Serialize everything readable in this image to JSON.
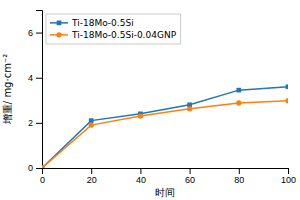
{
  "chart_data": {
    "type": "line",
    "xlabel": "时间",
    "ylabel": "增重/ mg·cm⁻²",
    "x": [
      0,
      20,
      40,
      60,
      80,
      100
    ],
    "series": [
      {
        "name": "Ti-18Mo-0.5Si",
        "values": [
          0,
          2.1,
          2.4,
          2.8,
          3.45,
          3.6
        ],
        "marker": "square"
      },
      {
        "name": "Ti-18Mo-0.5Si-0.04GNP",
        "values": [
          0,
          1.9,
          2.3,
          2.62,
          2.88,
          2.98
        ],
        "marker": "circle"
      }
    ],
    "xlim": [
      0,
      100
    ],
    "ylim": [
      0,
      7
    ],
    "xticks": [
      0,
      20,
      40,
      60,
      80,
      100
    ],
    "yticks": [
      0,
      2,
      4,
      6
    ],
    "grid": false,
    "legend": "upper left"
  }
}
